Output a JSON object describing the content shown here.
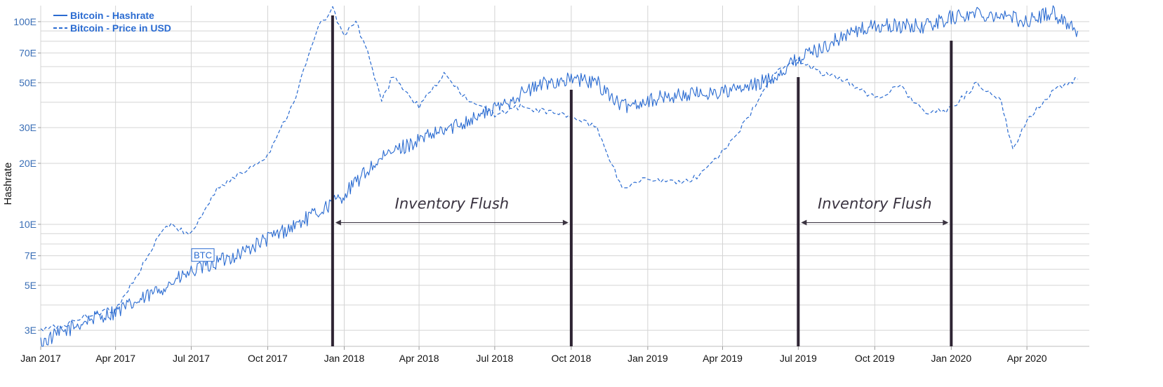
{
  "chart_data": {
    "type": "line",
    "title": "",
    "ylabel": "Hashrate",
    "y_scale": "log",
    "ylim": [
      2.5,
      120
    ],
    "xlim": [
      "2017-01-01",
      "2020-06-15"
    ],
    "y_ticks": [
      {
        "value": 3,
        "label": "3E"
      },
      {
        "value": 5,
        "label": "5E"
      },
      {
        "value": 7,
        "label": "7E"
      },
      {
        "value": 10,
        "label": "10E"
      },
      {
        "value": 20,
        "label": "20E"
      },
      {
        "value": 30,
        "label": "30E"
      },
      {
        "value": 50,
        "label": "50E"
      },
      {
        "value": 70,
        "label": "70E"
      },
      {
        "value": 100,
        "label": "100E"
      }
    ],
    "x_ticks": [
      {
        "date": "2017-01-01",
        "label": "Jan 2017"
      },
      {
        "date": "2017-04-01",
        "label": "Apr 2017"
      },
      {
        "date": "2017-07-01",
        "label": "Jul 2017"
      },
      {
        "date": "2017-10-01",
        "label": "Oct 2017"
      },
      {
        "date": "2018-01-01",
        "label": "Jan 2018"
      },
      {
        "date": "2018-04-01",
        "label": "Apr 2018"
      },
      {
        "date": "2018-07-01",
        "label": "Jul 2018"
      },
      {
        "date": "2018-10-01",
        "label": "Oct 2018"
      },
      {
        "date": "2019-01-01",
        "label": "Jan 2019"
      },
      {
        "date": "2019-04-01",
        "label": "Apr 2019"
      },
      {
        "date": "2019-07-01",
        "label": "Jul 2019"
      },
      {
        "date": "2019-10-01",
        "label": "Oct 2019"
      },
      {
        "date": "2020-01-01",
        "label": "Jan 2020"
      },
      {
        "date": "2020-04-01",
        "label": "Apr 2020"
      }
    ],
    "grid": true,
    "legend_position": "top-left",
    "series": [
      {
        "name": "Bitcoin - Hashrate",
        "style": "solid",
        "color": "#2a6bd1",
        "points": [
          [
            "2017-01-01",
            2.6
          ],
          [
            "2017-02-01",
            3.0
          ],
          [
            "2017-03-01",
            3.4
          ],
          [
            "2017-04-01",
            3.7
          ],
          [
            "2017-05-01",
            4.2
          ],
          [
            "2017-06-01",
            5.0
          ],
          [
            "2017-07-01",
            5.8
          ],
          [
            "2017-08-01",
            6.5
          ],
          [
            "2017-09-01",
            7.3
          ],
          [
            "2017-10-01",
            8.5
          ],
          [
            "2017-11-01",
            9.8
          ],
          [
            "2017-12-01",
            11.5
          ],
          [
            "2018-01-01",
            14.0
          ],
          [
            "2018-02-01",
            19.0
          ],
          [
            "2018-03-01",
            23.0
          ],
          [
            "2018-04-01",
            26.0
          ],
          [
            "2018-05-01",
            29.0
          ],
          [
            "2018-06-01",
            33.0
          ],
          [
            "2018-07-01",
            37.0
          ],
          [
            "2018-08-01",
            44.0
          ],
          [
            "2018-09-01",
            50.0
          ],
          [
            "2018-10-01",
            52.0
          ],
          [
            "2018-11-01",
            50.0
          ],
          [
            "2018-12-01",
            38.0
          ],
          [
            "2019-01-01",
            41.0
          ],
          [
            "2019-02-01",
            43.0
          ],
          [
            "2019-03-01",
            44.0
          ],
          [
            "2019-04-01",
            45.0
          ],
          [
            "2019-05-01",
            47.0
          ],
          [
            "2019-06-01",
            53.0
          ],
          [
            "2019-07-01",
            66.0
          ],
          [
            "2019-08-01",
            75.0
          ],
          [
            "2019-09-01",
            88.0
          ],
          [
            "2019-10-01",
            95.0
          ],
          [
            "2019-11-01",
            95.0
          ],
          [
            "2019-12-01",
            95.0
          ],
          [
            "2020-01-01",
            105.0
          ],
          [
            "2020-02-01",
            110.0
          ],
          [
            "2020-03-01",
            108.0
          ],
          [
            "2020-04-01",
            100.0
          ],
          [
            "2020-05-01",
            112.0
          ],
          [
            "2020-06-01",
            90.0
          ]
        ]
      },
      {
        "name": "Bitcoin - Price in USD",
        "style": "dashed",
        "color": "#2a6bd1",
        "points": [
          [
            "2017-01-01",
            3.0
          ],
          [
            "2017-02-01",
            3.2
          ],
          [
            "2017-03-01",
            3.6
          ],
          [
            "2017-04-01",
            3.8
          ],
          [
            "2017-05-01",
            6.0
          ],
          [
            "2017-06-01",
            10.0
          ],
          [
            "2017-07-01",
            9.0
          ],
          [
            "2017-08-01",
            15.0
          ],
          [
            "2017-09-01",
            18.0
          ],
          [
            "2017-10-01",
            22.0
          ],
          [
            "2017-11-01",
            40.0
          ],
          [
            "2017-12-01",
            95.0
          ],
          [
            "2017-12-18",
            115.0
          ],
          [
            "2018-01-01",
            85.0
          ],
          [
            "2018-01-15",
            100.0
          ],
          [
            "2018-02-01",
            65.0
          ],
          [
            "2018-02-15",
            40.0
          ],
          [
            "2018-03-01",
            55.0
          ],
          [
            "2018-03-15",
            45.0
          ],
          [
            "2018-04-01",
            38.0
          ],
          [
            "2018-05-01",
            55.0
          ],
          [
            "2018-06-01",
            40.0
          ],
          [
            "2018-07-01",
            35.0
          ],
          [
            "2018-08-01",
            38.0
          ],
          [
            "2018-09-01",
            36.0
          ],
          [
            "2018-10-01",
            34.0
          ],
          [
            "2018-11-01",
            30.0
          ],
          [
            "2018-12-01",
            15.0
          ],
          [
            "2019-01-01",
            17.0
          ],
          [
            "2019-02-01",
            16.0
          ],
          [
            "2019-03-01",
            17.0
          ],
          [
            "2019-04-01",
            23.0
          ],
          [
            "2019-05-01",
            33.0
          ],
          [
            "2019-06-01",
            55.0
          ],
          [
            "2019-07-01",
            65.0
          ],
          [
            "2019-08-01",
            55.0
          ],
          [
            "2019-09-01",
            50.0
          ],
          [
            "2019-10-01",
            42.0
          ],
          [
            "2019-11-01",
            48.0
          ],
          [
            "2019-12-01",
            35.0
          ],
          [
            "2020-01-01",
            37.0
          ],
          [
            "2020-02-01",
            50.0
          ],
          [
            "2020-03-01",
            40.0
          ],
          [
            "2020-03-15",
            23.0
          ],
          [
            "2020-04-01",
            33.0
          ],
          [
            "2020-05-01",
            45.0
          ],
          [
            "2020-06-01",
            52.0
          ]
        ]
      }
    ],
    "event_lines": [
      {
        "date": "2017-12-18"
      },
      {
        "date": "2018-10-01"
      },
      {
        "date": "2019-07-01"
      },
      {
        "date": "2020-01-01"
      }
    ],
    "annotations": [
      {
        "text": "Inventory Flush",
        "from": "2017-12-18",
        "to": "2018-10-01",
        "y": 10.2
      },
      {
        "text": "Inventory Flush",
        "from": "2019-07-01",
        "to": "2020-01-01",
        "y": 10.2
      }
    ],
    "inline_labels": [
      {
        "text": "BTC",
        "date": "2017-07-15",
        "value": 7.0
      }
    ]
  }
}
